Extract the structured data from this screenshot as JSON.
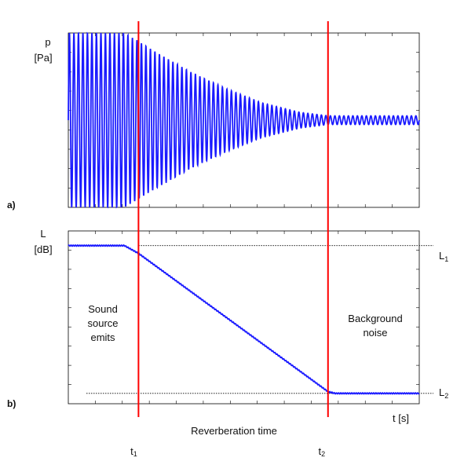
{
  "chart_data": [
    {
      "id": "a",
      "type": "line",
      "panel_label": "a)",
      "ylabel_line1": "p",
      "ylabel_line2": "[Pa]",
      "xlim": [
        0,
        1
      ],
      "ylim": [
        -1,
        1
      ],
      "series": [
        {
          "color": "#1a1aff",
          "description_points": {
            "x": [
              0.0,
              0.16,
              0.25,
              0.35,
              0.45,
              0.55,
              0.66,
              0.74,
              1.0
            ],
            "amplitude": [
              1.0,
              1.0,
              0.78,
              0.55,
              0.36,
              0.2,
              0.09,
              0.05,
              0.05
            ]
          },
          "cycles": 78
        }
      ]
    },
    {
      "id": "b",
      "type": "line",
      "panel_label": "b)",
      "ylabel_line1": "L",
      "ylabel_line2": "[dB]",
      "xlabel": "t [s]",
      "xlim": [
        0,
        1
      ],
      "ylim": [
        0,
        1
      ],
      "series": [
        {
          "color": "#1a1aff",
          "x": [
            0.0,
            0.16,
            0.2,
            0.74,
            0.76,
            1.0
          ],
          "y": [
            0.915,
            0.915,
            0.87,
            0.07,
            0.06,
            0.06
          ]
        }
      ],
      "reference_levels": [
        {
          "label": "L",
          "subscript": "1",
          "value": 0.915
        },
        {
          "label": "L",
          "subscript": "2",
          "value": 0.06
        }
      ],
      "annotations": [
        {
          "lines": [
            "Sound",
            "source",
            "emits"
          ]
        },
        {
          "lines": [
            "Background",
            "noise"
          ]
        }
      ]
    }
  ],
  "markers": [
    {
      "label": "t",
      "subscript": "1",
      "x": 0.2,
      "color": "#ff0000"
    },
    {
      "label": "t",
      "subscript": "2",
      "x": 0.74,
      "color": "#ff0000"
    }
  ],
  "bottom_caption": "Reverberation time"
}
